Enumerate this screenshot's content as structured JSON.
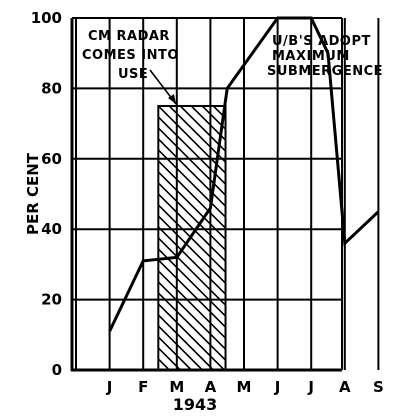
{
  "chart_data": {
    "type": "line",
    "title": "",
    "xlabel": "1943",
    "ylabel": "PER CENT",
    "ylim": [
      0,
      100
    ],
    "yticks": [
      "0",
      "20",
      "40",
      "60",
      "80",
      "100"
    ],
    "categories": [
      "J",
      "F",
      "M",
      "A",
      "M",
      "J",
      "J",
      "A",
      "S"
    ],
    "grid": true,
    "series": [
      {
        "name": "",
        "x": [
          1,
          2,
          3,
          4,
          4.5,
          6,
          7,
          7.5,
          8,
          9
        ],
        "y": [
          11,
          31,
          32,
          46,
          80,
          100,
          100,
          90,
          36,
          45
        ]
      }
    ],
    "shaded_region": {
      "x_start": 2.45,
      "x_end": 4.45,
      "y_max": 75
    },
    "annotations": [
      {
        "lines": [
          "CM RADAR",
          "COMES INTO",
          "USE"
        ]
      },
      {
        "lines": [
          "U/B'S ADOPT",
          "MAXIMUM",
          "SUBMERGENCE"
        ]
      }
    ],
    "colors": {
      "ink": "#000000",
      "background": "#ffffff"
    }
  }
}
